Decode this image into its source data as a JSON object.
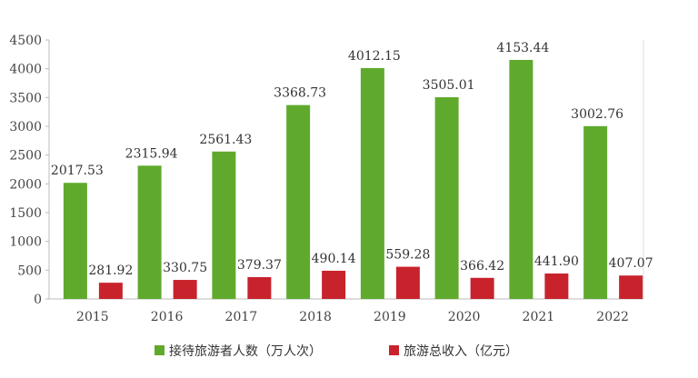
{
  "chart_data": {
    "type": "bar",
    "categories": [
      "2015",
      "2016",
      "2017",
      "2018",
      "2019",
      "2020",
      "2021",
      "2022"
    ],
    "series": [
      {
        "name": "接待旅游者人数（万人次）",
        "color": "#5faa2d",
        "values": [
          2017.53,
          2315.94,
          2561.43,
          3368.73,
          4012.15,
          3505.01,
          4153.44,
          3002.76
        ],
        "labels": [
          "2017.53",
          "2315.94",
          "2561.43",
          "3368.73",
          "4012.15",
          "3505.01",
          "4153.44",
          "3002.76"
        ]
      },
      {
        "name": "旅游总收入（亿元）",
        "color": "#c8232c",
        "values": [
          281.92,
          330.75,
          379.37,
          490.14,
          559.28,
          366.42,
          441.9,
          407.07
        ],
        "labels": [
          "281.92",
          "330.75",
          "379.37",
          "490.14",
          "559.28",
          "366.42",
          "441.90",
          "407.07"
        ]
      }
    ],
    "ylim": [
      0,
      4500
    ],
    "yticks": [
      "0",
      "500",
      "1000",
      "1500",
      "2000",
      "2500",
      "3000",
      "3500",
      "4000",
      "4500"
    ],
    "grid": false,
    "legend_position": "bottom"
  }
}
